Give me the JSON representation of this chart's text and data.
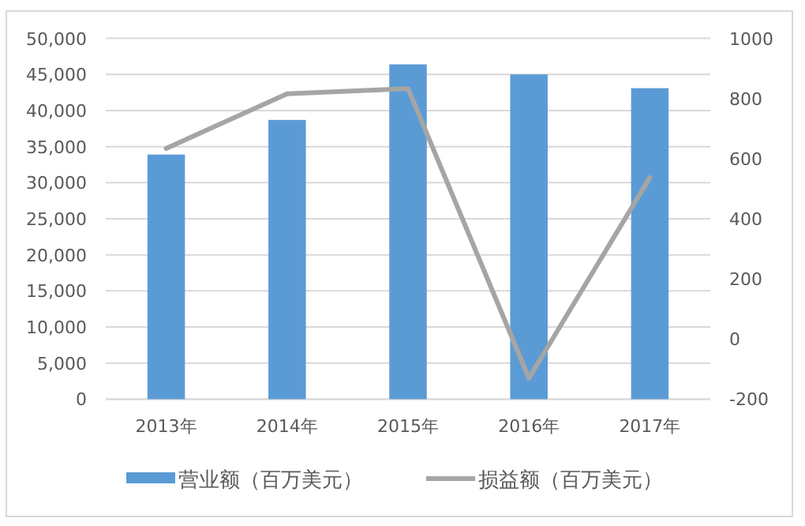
{
  "chart_data": {
    "type": "bar",
    "categories": [
      "2013年",
      "2014年",
      "2015年",
      "2016年",
      "2017年"
    ],
    "series": [
      {
        "name": "营业额（百万美元）",
        "color": "#5b9bd5",
        "values": [
          33900,
          38700,
          46400,
          45000,
          43100
        ]
      },
      {
        "name": "损益额（百万美元）",
        "type": "line",
        "axis": "y2",
        "color": "#a5a5a5",
        "values": [
          634,
          816,
          833,
          -130,
          537
        ]
      }
    ],
    "ylim": [
      0,
      50000
    ],
    "yticks": [
      {
        "value": 0,
        "label": "0"
      },
      {
        "value": 5000,
        "label": "5,000"
      },
      {
        "value": 10000,
        "label": "10,000"
      },
      {
        "value": 15000,
        "label": "15,000"
      },
      {
        "value": 20000,
        "label": "20,000"
      },
      {
        "value": 25000,
        "label": "25,000"
      },
      {
        "value": 30000,
        "label": "30,000"
      },
      {
        "value": 35000,
        "label": "35,000"
      },
      {
        "value": 40000,
        "label": "40,000"
      },
      {
        "value": 45000,
        "label": "45,000"
      },
      {
        "value": 50000,
        "label": "50,000"
      }
    ],
    "y2lim": [
      -200,
      1000
    ],
    "y2ticks": [
      -200,
      0,
      200,
      400,
      600,
      800,
      1000
    ],
    "grid": "y",
    "legend": "bottom",
    "marker": "none"
  }
}
